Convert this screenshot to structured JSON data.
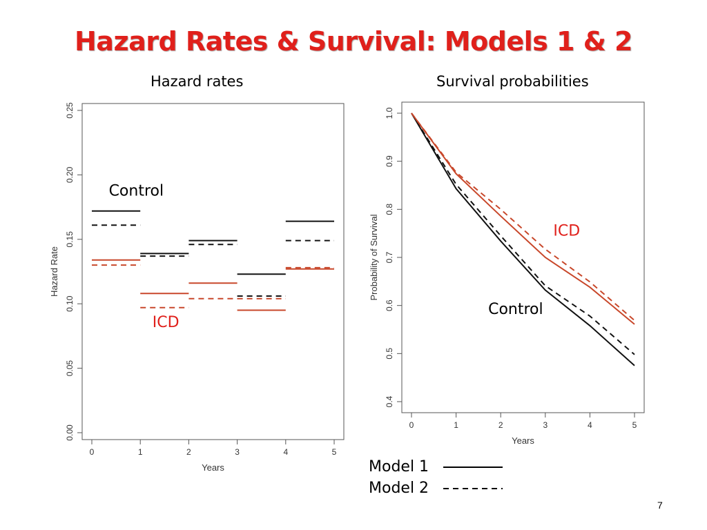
{
  "slide": {
    "title": "Hazard Rates & Survival: Models 1 & 2",
    "page_number": "7"
  },
  "colors": {
    "control": "#111111",
    "icd": "#c8472a",
    "label_red": "#e0201b"
  },
  "legend": [
    {
      "label": "Model 1",
      "style": "solid"
    },
    {
      "label": "Model 2",
      "style": "dashed"
    }
  ],
  "chart_data": [
    {
      "type": "line",
      "title": "Hazard rates",
      "xlabel": "Years",
      "ylabel": "Hazard Rate",
      "xlim": [
        0,
        5
      ],
      "ylim": [
        0,
        0.25
      ],
      "x_ticks": [
        "0",
        "1",
        "2",
        "3",
        "4",
        "5"
      ],
      "y_ticks": [
        "0.00",
        "0.05",
        "0.10",
        "0.15",
        "0.20",
        "0.25"
      ],
      "grid": false,
      "annotations": {
        "control": "Control",
        "icd": "ICD"
      },
      "series": [
        {
          "group": "Control",
          "model": "Model 1",
          "segments": [
            {
              "from": 0,
              "to": 1,
              "value": 0.172
            },
            {
              "from": 1,
              "to": 2,
              "value": 0.139
            },
            {
              "from": 2,
              "to": 3,
              "value": 0.149
            },
            {
              "from": 3,
              "to": 4,
              "value": 0.123
            },
            {
              "from": 4,
              "to": 5,
              "value": 0.164
            }
          ]
        },
        {
          "group": "Control",
          "model": "Model 2",
          "segments": [
            {
              "from": 0,
              "to": 1,
              "value": 0.161
            },
            {
              "from": 1,
              "to": 2,
              "value": 0.137
            },
            {
              "from": 2,
              "to": 3,
              "value": 0.146
            },
            {
              "from": 3,
              "to": 4,
              "value": 0.106
            },
            {
              "from": 4,
              "to": 5,
              "value": 0.149
            }
          ]
        },
        {
          "group": "ICD",
          "model": "Model 1",
          "segments": [
            {
              "from": 0,
              "to": 1,
              "value": 0.134
            },
            {
              "from": 1,
              "to": 2,
              "value": 0.108
            },
            {
              "from": 2,
              "to": 3,
              "value": 0.116
            },
            {
              "from": 3,
              "to": 4,
              "value": 0.095
            },
            {
              "from": 4,
              "to": 5,
              "value": 0.127
            }
          ]
        },
        {
          "group": "ICD",
          "model": "Model 2",
          "segments": [
            {
              "from": 0,
              "to": 1,
              "value": 0.13
            },
            {
              "from": 1,
              "to": 2,
              "value": 0.097
            },
            {
              "from": 2,
              "to": 3,
              "value": 0.104
            },
            {
              "from": 3,
              "to": 4,
              "value": 0.104
            },
            {
              "from": 4,
              "to": 5,
              "value": 0.128
            }
          ]
        }
      ]
    },
    {
      "type": "line",
      "title": "Survival probabilities",
      "xlabel": "Years",
      "ylabel": "Probability of Survival",
      "xlim": [
        0,
        5
      ],
      "ylim": [
        0.4,
        1.0
      ],
      "x_ticks": [
        "0",
        "1",
        "2",
        "3",
        "4",
        "5"
      ],
      "y_ticks": [
        "0.4",
        "0.5",
        "0.6",
        "0.7",
        "0.8",
        "0.9",
        "1.0"
      ],
      "grid": false,
      "annotations": {
        "control": "Control",
        "icd": "ICD"
      },
      "x": [
        0,
        1,
        2,
        3,
        4,
        5
      ],
      "series": [
        {
          "group": "Control",
          "model": "Model 1",
          "values": [
            1.0,
            0.843,
            0.734,
            0.632,
            0.558,
            0.475
          ]
        },
        {
          "group": "Control",
          "model": "Model 2",
          "values": [
            1.0,
            0.852,
            0.745,
            0.641,
            0.578,
            0.498
          ]
        },
        {
          "group": "ICD",
          "model": "Model 1",
          "values": [
            1.0,
            0.874,
            0.786,
            0.7,
            0.638,
            0.561
          ]
        },
        {
          "group": "ICD",
          "model": "Model 2",
          "values": [
            1.0,
            0.877,
            0.8,
            0.717,
            0.649,
            0.569
          ]
        }
      ]
    }
  ]
}
